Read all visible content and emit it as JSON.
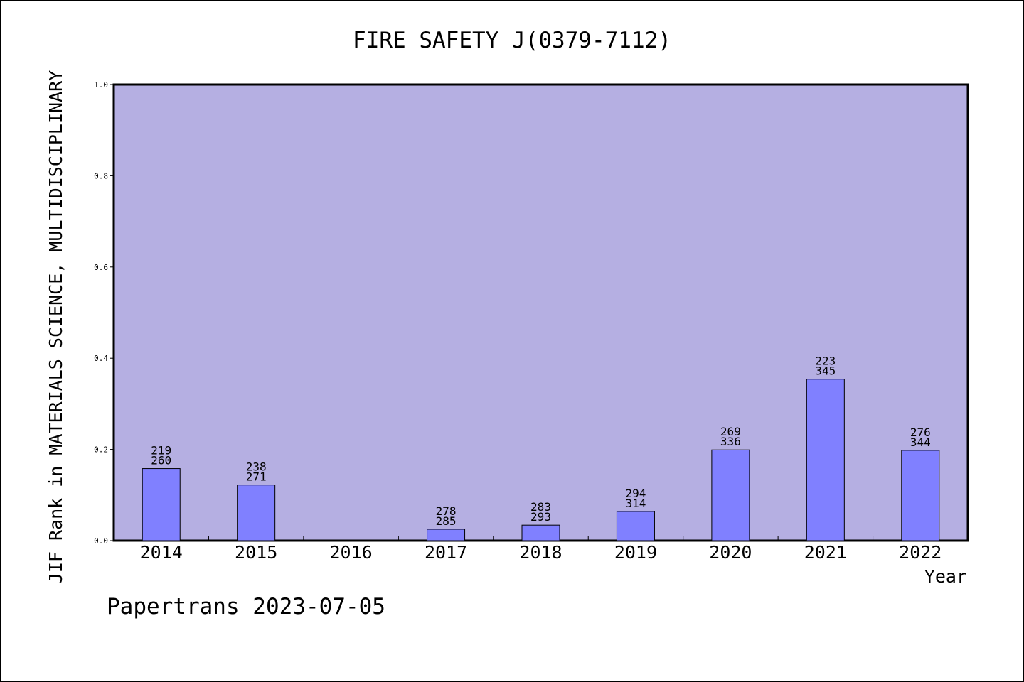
{
  "chart_data": {
    "type": "bar",
    "title": "FIRE SAFETY J(0379-7112)",
    "xlabel": "Year",
    "ylabel": "JIF Rank in MATERIALS SCIENCE, MULTIDISCIPLINARY",
    "ylim": [
      0,
      1.0
    ],
    "yticks": [
      "0.0",
      "0.2",
      "0.4",
      "0.6",
      "0.8",
      "1.0"
    ],
    "grid": false,
    "categories": [
      "2014",
      "2015",
      "2016",
      "2017",
      "2018",
      "2019",
      "2020",
      "2021",
      "2022"
    ],
    "values": [
      0.158,
      0.122,
      0,
      0.025,
      0.034,
      0.064,
      0.199,
      0.354,
      0.198
    ],
    "rank": [
      "219",
      "238",
      "",
      "278",
      "283",
      "294",
      "269",
      "223",
      "276"
    ],
    "total": [
      "260",
      "271",
      "",
      "285",
      "293",
      "314",
      "336",
      "345",
      "344"
    ],
    "colors": {
      "plot_bg": "#b5afe2",
      "bar": "#8080ff",
      "axis": "#000000"
    }
  },
  "footer": {
    "credit": "Papertrans 2023-07-05"
  }
}
